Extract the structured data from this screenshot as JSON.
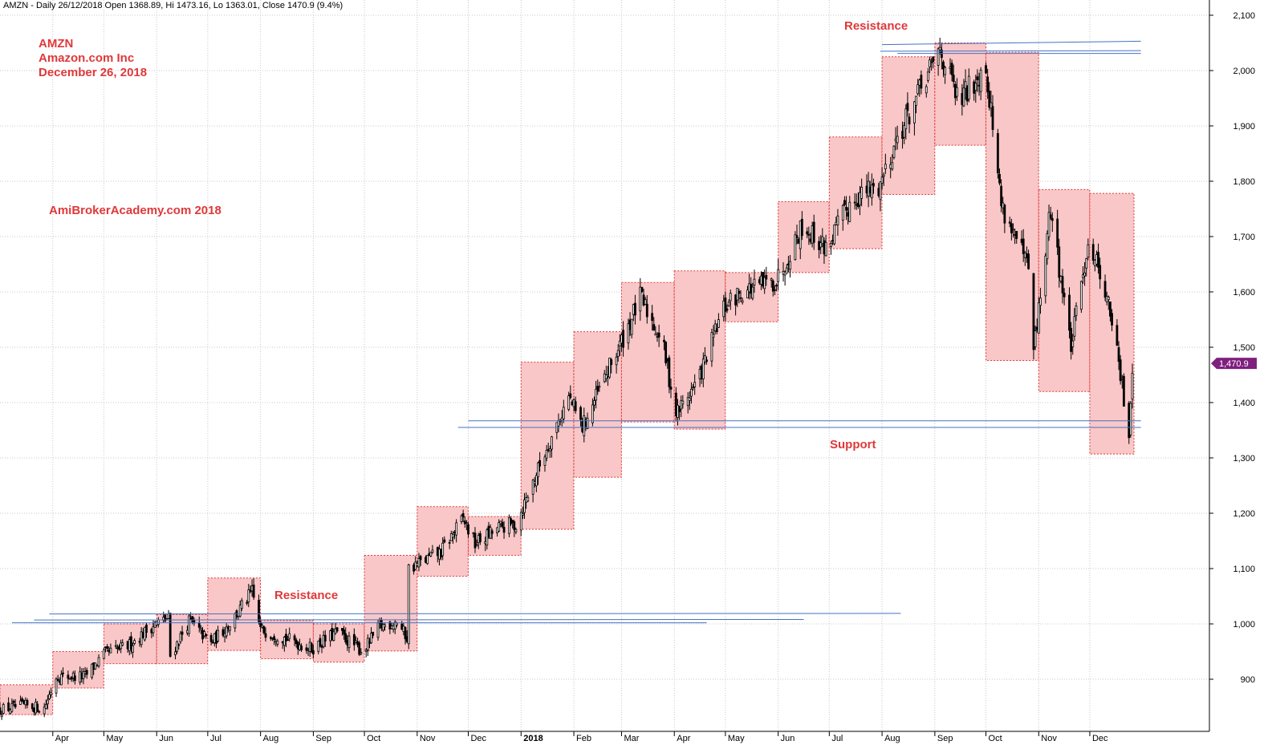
{
  "header": {
    "info": "AMZN - Daily 26/12/2018 Open 1368.89, Hi 1473.16, Lo 1363.01, Close 1470.9 (9.4%)"
  },
  "annotations": {
    "ticker": "AMZN",
    "company": "Amazon.com Inc",
    "date": "December 26, 2018",
    "watermark": "AmiBrokerAcademy.com  2018",
    "resistance_top": "Resistance",
    "resistance_bottom": "Resistance",
    "support": "Support"
  },
  "colors": {
    "candle": "#000000",
    "box_fill": "#f9c4c4",
    "box_border": "#e0383a",
    "trendline": "#4472c4",
    "grid": "#c8c8c8",
    "annotation": "#e0383a",
    "price_tag": "#7f1f7f"
  },
  "chart_data": {
    "type": "candlestick",
    "xlabel": "",
    "ylabel": "",
    "ylim": [
      830,
      2120
    ],
    "y_ticks": [
      900,
      1000,
      1100,
      1200,
      1300,
      1400,
      1500,
      1600,
      1700,
      1800,
      1900,
      2000,
      2100
    ],
    "y_tick_labels": [
      "900",
      "1,000",
      "1,100",
      "1,200",
      "1,300",
      "1,400",
      "1,500",
      "1,600",
      "1,700",
      "1,800",
      "1,900",
      "2,000",
      "2,100"
    ],
    "x_ticks": [
      "2017-04-01",
      "2017-05-01",
      "2017-06-01",
      "2017-07-01",
      "2017-08-01",
      "2017-09-01",
      "2017-10-01",
      "2017-11-01",
      "2017-12-01",
      "2018-01-01",
      "2018-02-01",
      "2018-03-01",
      "2018-04-01",
      "2018-05-01",
      "2018-06-01",
      "2018-07-01",
      "2018-08-01",
      "2018-09-01",
      "2018-10-01",
      "2018-11-01",
      "2018-12-01"
    ],
    "x_tick_labels": [
      "Apr",
      "May",
      "Jun",
      "Jul",
      "Aug",
      "Sep",
      "Oct",
      "Nov",
      "Dec",
      "2018",
      "Feb",
      "Mar",
      "Apr",
      "May",
      "Jun",
      "Jul",
      "Aug",
      "Sep",
      "Oct",
      "Nov",
      "Dec"
    ],
    "x_range": [
      "2017-03-01",
      "2018-12-26"
    ],
    "last_price": 1470.9,
    "last_price_label": "1,470.9",
    "price_path": [
      [
        "2017-03-01",
        845
      ],
      [
        "2017-03-15",
        852
      ],
      [
        "2017-03-27",
        848
      ],
      [
        "2017-04-03",
        905
      ],
      [
        "2017-04-20",
        905
      ],
      [
        "2017-05-01",
        945
      ],
      [
        "2017-05-15",
        960
      ],
      [
        "2017-05-31",
        1000
      ],
      [
        "2017-06-08",
        1010
      ],
      [
        "2017-06-09",
        942
      ],
      [
        "2017-06-20",
        1005
      ],
      [
        "2017-07-03",
        965
      ],
      [
        "2017-07-15",
        1005
      ],
      [
        "2017-07-27",
        1058
      ],
      [
        "2017-08-01",
        990
      ],
      [
        "2017-08-15",
        975
      ],
      [
        "2017-08-31",
        955
      ],
      [
        "2017-09-15",
        985
      ],
      [
        "2017-09-30",
        950
      ],
      [
        "2017-10-10",
        995
      ],
      [
        "2017-10-20",
        1005
      ],
      [
        "2017-10-26",
        975
      ],
      [
        "2017-10-27",
        1100
      ],
      [
        "2017-11-15",
        1130
      ],
      [
        "2017-11-28",
        1190
      ],
      [
        "2017-12-05",
        1145
      ],
      [
        "2017-12-20",
        1175
      ],
      [
        "2017-12-29",
        1180
      ],
      [
        "2018-01-15",
        1310
      ],
      [
        "2018-01-29",
        1410
      ],
      [
        "2018-02-06",
        1355
      ],
      [
        "2018-02-20",
        1450
      ],
      [
        "2018-03-01",
        1510
      ],
      [
        "2018-03-12",
        1590
      ],
      [
        "2018-03-25",
        1510
      ],
      [
        "2018-04-02",
        1380
      ],
      [
        "2018-04-15",
        1440
      ],
      [
        "2018-04-30",
        1570
      ],
      [
        "2018-05-10",
        1600
      ],
      [
        "2018-05-31",
        1620
      ],
      [
        "2018-06-15",
        1720
      ],
      [
        "2018-06-29",
        1680
      ],
      [
        "2018-07-15",
        1770
      ],
      [
        "2018-07-30",
        1790
      ],
      [
        "2018-08-10",
        1880
      ],
      [
        "2018-08-31",
        2010
      ],
      [
        "2018-09-04",
        2040
      ],
      [
        "2018-09-15",
        1940
      ],
      [
        "2018-09-28",
        2000
      ],
      [
        "2018-10-01",
        2010
      ],
      [
        "2018-10-10",
        1760
      ],
      [
        "2018-10-26",
        1640
      ],
      [
        "2018-10-29",
        1490
      ],
      [
        "2018-11-08",
        1750
      ],
      [
        "2018-11-20",
        1500
      ],
      [
        "2018-11-30",
        1690
      ],
      [
        "2018-12-07",
        1640
      ],
      [
        "2018-12-14",
        1550
      ],
      [
        "2018-12-24",
        1343
      ],
      [
        "2018-12-26",
        1470
      ]
    ],
    "boxes": [
      {
        "start": "2017-03-01",
        "end": "2017-03-31",
        "low": 836,
        "high": 890
      },
      {
        "start": "2017-04-01",
        "end": "2017-04-30",
        "low": 884,
        "high": 950
      },
      {
        "start": "2017-05-01",
        "end": "2017-05-31",
        "low": 928,
        "high": 1000
      },
      {
        "start": "2017-06-01",
        "end": "2017-06-30",
        "low": 928,
        "high": 1017
      },
      {
        "start": "2017-07-01",
        "end": "2017-07-31",
        "low": 952,
        "high": 1083
      },
      {
        "start": "2017-08-01",
        "end": "2017-08-31",
        "low": 937,
        "high": 1006
      },
      {
        "start": "2017-09-01",
        "end": "2017-09-30",
        "low": 931,
        "high": 1000
      },
      {
        "start": "2017-10-01",
        "end": "2017-10-31",
        "low": 951,
        "high": 1124
      },
      {
        "start": "2017-11-01",
        "end": "2017-11-30",
        "low": 1086,
        "high": 1212
      },
      {
        "start": "2017-12-01",
        "end": "2017-12-31",
        "low": 1124,
        "high": 1194
      },
      {
        "start": "2018-01-01",
        "end": "2018-01-31",
        "low": 1171,
        "high": 1473
      },
      {
        "start": "2018-02-01",
        "end": "2018-02-28",
        "low": 1265,
        "high": 1528
      },
      {
        "start": "2018-03-01",
        "end": "2018-03-31",
        "low": 1365,
        "high": 1617
      },
      {
        "start": "2018-04-01",
        "end": "2018-04-30",
        "low": 1352,
        "high": 1638
      },
      {
        "start": "2018-05-01",
        "end": "2018-05-31",
        "low": 1546,
        "high": 1635
      },
      {
        "start": "2018-06-01",
        "end": "2018-06-30",
        "low": 1635,
        "high": 1763
      },
      {
        "start": "2018-07-01",
        "end": "2018-07-31",
        "low": 1678,
        "high": 1880
      },
      {
        "start": "2018-08-01",
        "end": "2018-08-31",
        "low": 1776,
        "high": 2025
      },
      {
        "start": "2018-09-01",
        "end": "2018-09-30",
        "low": 1865,
        "high": 2050
      },
      {
        "start": "2018-10-01",
        "end": "2018-10-31",
        "low": 1476,
        "high": 2033
      },
      {
        "start": "2018-11-01",
        "end": "2018-11-30",
        "low": 1420,
        "high": 1785
      },
      {
        "start": "2018-12-01",
        "end": "2018-12-26",
        "low": 1307,
        "high": 1778
      }
    ],
    "lines": [
      {
        "x1": "2018-08-01",
        "y1": 2047,
        "x2": "2018-12-31",
        "y2": 2053
      },
      {
        "x1": "2018-07-31",
        "y1": 2035,
        "x2": "2018-12-31",
        "y2": 2036
      },
      {
        "x1": "2018-08-10",
        "y1": 2031,
        "x2": "2018-12-31",
        "y2": 2031
      },
      {
        "x1": "2017-03-08",
        "y1": 1002,
        "x2": "2018-04-20",
        "y2": 1002
      },
      {
        "x1": "2017-03-21",
        "y1": 1007,
        "x2": "2018-06-16",
        "y2": 1008
      },
      {
        "x1": "2017-03-30",
        "y1": 1018,
        "x2": "2018-08-12",
        "y2": 1019
      },
      {
        "x1": "2017-12-01",
        "y1": 1367,
        "x2": "2018-12-31",
        "y2": 1367
      },
      {
        "x1": "2017-11-25",
        "y1": 1355,
        "x2": "2018-12-31",
        "y2": 1355
      }
    ]
  }
}
